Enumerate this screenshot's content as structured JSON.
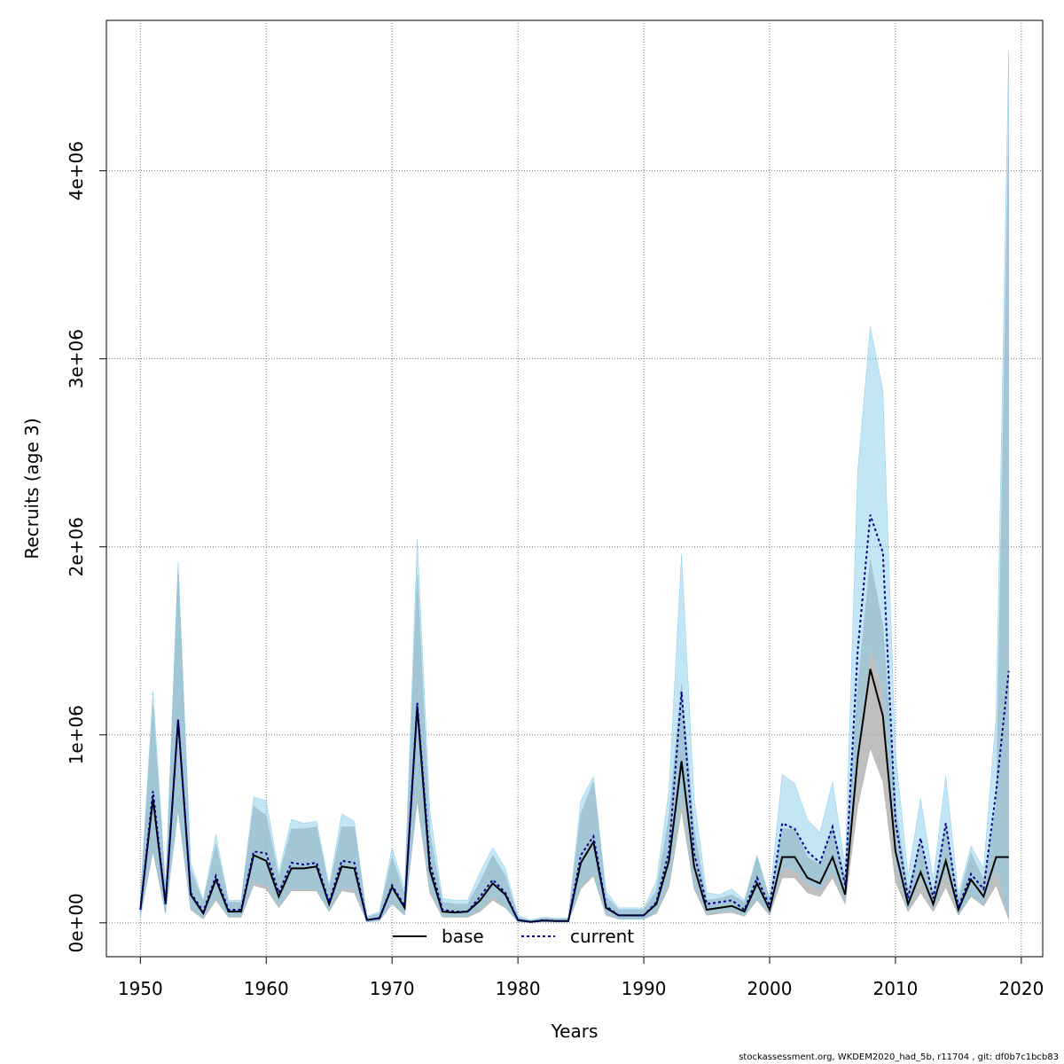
{
  "chart_data": {
    "type": "line",
    "title": "",
    "xlabel": "Years",
    "ylabel": "Recruits (age 3)",
    "xlim": [
      1947.3,
      2021.7
    ],
    "ylim": [
      -180000,
      4800000
    ],
    "xticks": [
      1950,
      1960,
      1970,
      1980,
      1990,
      2000,
      2010,
      2020
    ],
    "xtick_labels": [
      "1950",
      "1960",
      "1970",
      "1980",
      "1990",
      "2000",
      "2010",
      "2020"
    ],
    "yticks": [
      0,
      1000000,
      2000000,
      3000000,
      4000000
    ],
    "ytick_labels": [
      "0e+00",
      "1e+06",
      "2e+06",
      "3e+06",
      "4e+06"
    ],
    "grid": true,
    "legend_placement": "bottom-center",
    "colors": {
      "base_band": "#a9a9a9",
      "current_band": "#87ceeb",
      "base_line": "#000000",
      "current_line": "#00008b"
    },
    "x": [
      1950,
      1951,
      1952,
      1953,
      1954,
      1955,
      1956,
      1957,
      1958,
      1959,
      1960,
      1961,
      1962,
      1963,
      1964,
      1965,
      1966,
      1967,
      1968,
      1969,
      1970,
      1971,
      1972,
      1973,
      1974,
      1975,
      1976,
      1977,
      1978,
      1979,
      1980,
      1981,
      1982,
      1983,
      1984,
      1985,
      1986,
      1987,
      1988,
      1989,
      1990,
      1991,
      1992,
      1993,
      1994,
      1995,
      1996,
      1997,
      1998,
      1999,
      2000,
      2001,
      2002,
      2003,
      2004,
      2005,
      2006,
      2007,
      2008,
      2009,
      2010,
      2011,
      2012,
      2013,
      2014,
      2015,
      2016,
      2017,
      2018,
      2019
    ],
    "series": [
      {
        "name": "base",
        "values": [
          70000,
          660000,
          100000,
          1080000,
          150000,
          50000,
          230000,
          60000,
          60000,
          360000,
          330000,
          140000,
          290000,
          290000,
          300000,
          100000,
          300000,
          290000,
          15000,
          25000,
          190000,
          80000,
          1150000,
          280000,
          60000,
          55000,
          60000,
          120000,
          210000,
          150000,
          15000,
          5000,
          12000,
          10000,
          10000,
          320000,
          430000,
          80000,
          40000,
          40000,
          40000,
          100000,
          330000,
          860000,
          300000,
          70000,
          80000,
          90000,
          60000,
          210000,
          70000,
          350000,
          350000,
          240000,
          210000,
          350000,
          150000,
          880000,
          1350000,
          1100000,
          380000,
          100000,
          270000,
          100000,
          330000,
          70000,
          230000,
          140000,
          350000,
          350000
        ],
        "lower": [
          30000,
          380000,
          50000,
          600000,
          70000,
          20000,
          120000,
          30000,
          30000,
          200000,
          180000,
          80000,
          170000,
          170000,
          170000,
          60000,
          170000,
          160000,
          5000,
          10000,
          100000,
          40000,
          650000,
          160000,
          30000,
          30000,
          30000,
          60000,
          120000,
          80000,
          5000,
          2000,
          5000,
          4000,
          4000,
          180000,
          250000,
          40000,
          20000,
          20000,
          20000,
          50000,
          190000,
          600000,
          180000,
          40000,
          50000,
          55000,
          35000,
          120000,
          40000,
          240000,
          240000,
          160000,
          140000,
          240000,
          100000,
          620000,
          930000,
          750000,
          220000,
          60000,
          160000,
          60000,
          190000,
          40000,
          140000,
          90000,
          200000,
          20000
        ],
        "upper": [
          130000,
          1150000,
          180000,
          1870000,
          280000,
          110000,
          420000,
          110000,
          110000,
          620000,
          570000,
          240000,
          500000,
          500000,
          510000,
          180000,
          510000,
          510000,
          30000,
          50000,
          350000,
          150000,
          1850000,
          480000,
          110000,
          100000,
          100000,
          220000,
          360000,
          250000,
          30000,
          12000,
          25000,
          20000,
          20000,
          580000,
          750000,
          140000,
          70000,
          70000,
          70000,
          170000,
          560000,
          1270000,
          500000,
          120000,
          130000,
          150000,
          110000,
          350000,
          120000,
          500000,
          500000,
          350000,
          310000,
          520000,
          240000,
          1250000,
          1930000,
          1580000,
          620000,
          170000,
          430000,
          160000,
          530000,
          120000,
          370000,
          230000,
          620000,
          4200000
        ]
      },
      {
        "name": "current",
        "values": [
          70000,
          700000,
          100000,
          1080000,
          160000,
          60000,
          250000,
          70000,
          70000,
          380000,
          370000,
          160000,
          320000,
          310000,
          320000,
          110000,
          330000,
          320000,
          15000,
          25000,
          200000,
          90000,
          1170000,
          320000,
          70000,
          60000,
          60000,
          140000,
          230000,
          160000,
          15000,
          5000,
          15000,
          10000,
          10000,
          360000,
          460000,
          90000,
          40000,
          40000,
          40000,
          110000,
          380000,
          1230000,
          370000,
          100000,
          110000,
          120000,
          70000,
          240000,
          90000,
          530000,
          500000,
          380000,
          320000,
          510000,
          200000,
          1450000,
          2170000,
          1970000,
          540000,
          130000,
          450000,
          130000,
          530000,
          80000,
          260000,
          180000,
          700000,
          1340000
        ],
        "lower": [
          30000,
          400000,
          50000,
          620000,
          80000,
          25000,
          140000,
          35000,
          35000,
          220000,
          200000,
          90000,
          190000,
          180000,
          180000,
          65000,
          190000,
          180000,
          6000,
          10000,
          110000,
          45000,
          700000,
          180000,
          35000,
          35000,
          35000,
          75000,
          140000,
          90000,
          6000,
          2000,
          6000,
          4000,
          4000,
          200000,
          260000,
          45000,
          20000,
          20000,
          20000,
          60000,
          220000,
          700000,
          200000,
          55000,
          60000,
          70000,
          40000,
          130000,
          50000,
          300000,
          280000,
          210000,
          180000,
          280000,
          120000,
          900000,
          1480000,
          1250000,
          320000,
          70000,
          250000,
          75000,
          290000,
          45000,
          150000,
          100000,
          300000,
          40000
        ],
        "upper": [
          140000,
          1230000,
          200000,
          1920000,
          320000,
          120000,
          470000,
          120000,
          120000,
          670000,
          650000,
          270000,
          550000,
          530000,
          540000,
          200000,
          580000,
          540000,
          35000,
          60000,
          400000,
          180000,
          2040000,
          600000,
          130000,
          120000,
          120000,
          270000,
          400000,
          290000,
          40000,
          15000,
          30000,
          25000,
          25000,
          650000,
          780000,
          170000,
          80000,
          80000,
          80000,
          220000,
          700000,
          1960000,
          660000,
          160000,
          150000,
          180000,
          120000,
          360000,
          130000,
          790000,
          740000,
          550000,
          480000,
          750000,
          300000,
          2400000,
          3170000,
          2830000,
          910000,
          250000,
          660000,
          230000,
          780000,
          150000,
          410000,
          290000,
          1100000,
          4640000
        ]
      }
    ],
    "footnote": "stockassessment.org, WKDEM2020_had_5b, r11704 , git: df0b7c1bcb83"
  }
}
